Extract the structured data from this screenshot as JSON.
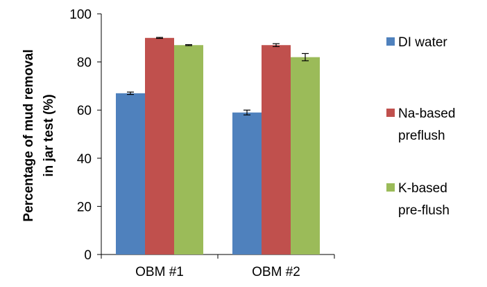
{
  "chart_data": {
    "type": "bar",
    "categories": [
      "OBM #1",
      "OBM #2"
    ],
    "series": [
      {
        "name": "DI water",
        "lines": [
          "DI water"
        ],
        "color": "#4f81bd",
        "values": [
          67,
          59
        ],
        "errors": [
          0.5,
          1.0
        ]
      },
      {
        "name": "Na-based preflush",
        "lines": [
          "Na-based",
          "preflush"
        ],
        "color": "#c0504d",
        "values": [
          90,
          87
        ],
        "errors": [
          0.2,
          0.6
        ]
      },
      {
        "name": "K-based pre-flush",
        "lines": [
          "K-based",
          "pre-flush"
        ],
        "color": "#9bbb59",
        "values": [
          87,
          82
        ],
        "errors": [
          0.2,
          1.5
        ]
      }
    ],
    "ylabel_lines": [
      "Percentage of mud removal",
      "in jar test (%)"
    ],
    "xlabel": "",
    "title": "",
    "ylim": [
      0,
      100
    ],
    "yticks": [
      0,
      20,
      40,
      60,
      80,
      100
    ],
    "grid": false,
    "legend_position": "right"
  }
}
